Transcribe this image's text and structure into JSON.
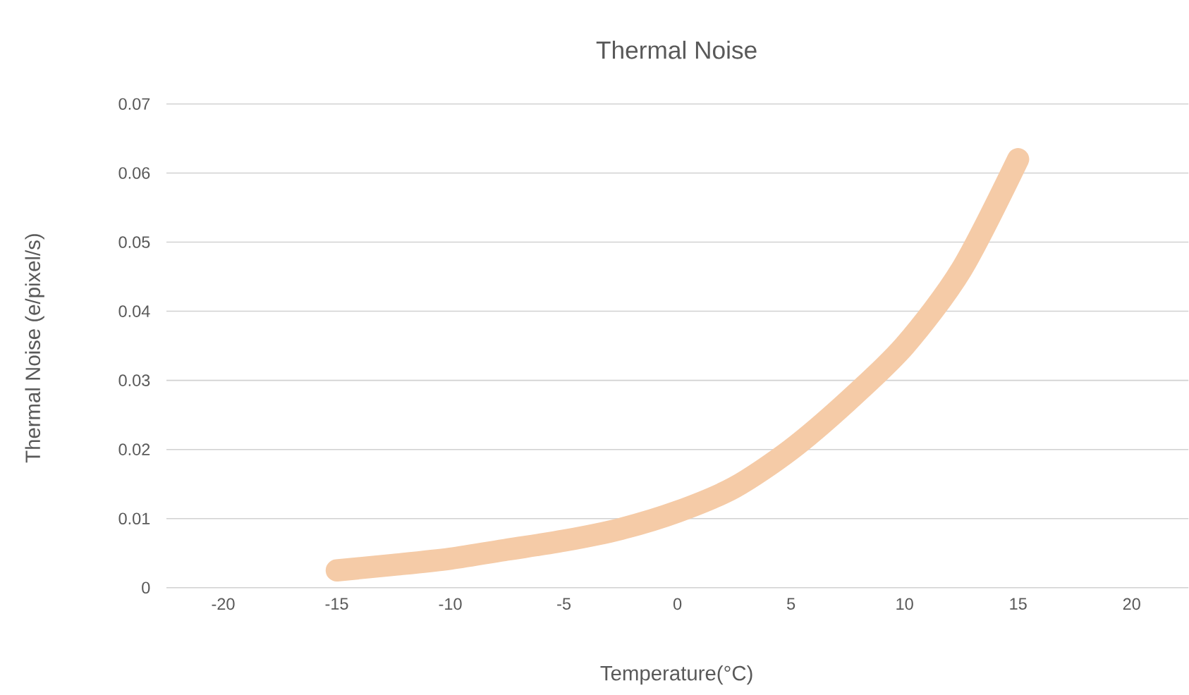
{
  "chart_data": {
    "type": "line",
    "title": "Thermal Noise",
    "xlabel": "Temperature(°C)",
    "ylabel": "Thermal Noise (e/pixel/s)",
    "series": [
      {
        "color": "#f5cba7",
        "x": [
          -15,
          -12.5,
          -10,
          -7.5,
          -5,
          -2.5,
          0,
          2.5,
          5,
          7.5,
          10,
          12.5,
          15
        ],
        "values": [
          0.0025,
          0.0033,
          0.0042,
          0.0055,
          0.0068,
          0.0085,
          0.011,
          0.0145,
          0.02,
          0.027,
          0.035,
          0.046,
          0.062
        ]
      }
    ],
    "xlim": [
      -22.5,
      22.5
    ],
    "ylim": [
      0,
      0.07
    ],
    "xticks": [
      -20,
      -15,
      -10,
      -5,
      0,
      5,
      10,
      15,
      20
    ],
    "yticks": [
      0,
      0.01,
      0.02,
      0.03,
      0.04,
      0.05,
      0.06,
      0.07
    ],
    "grid": "y"
  }
}
